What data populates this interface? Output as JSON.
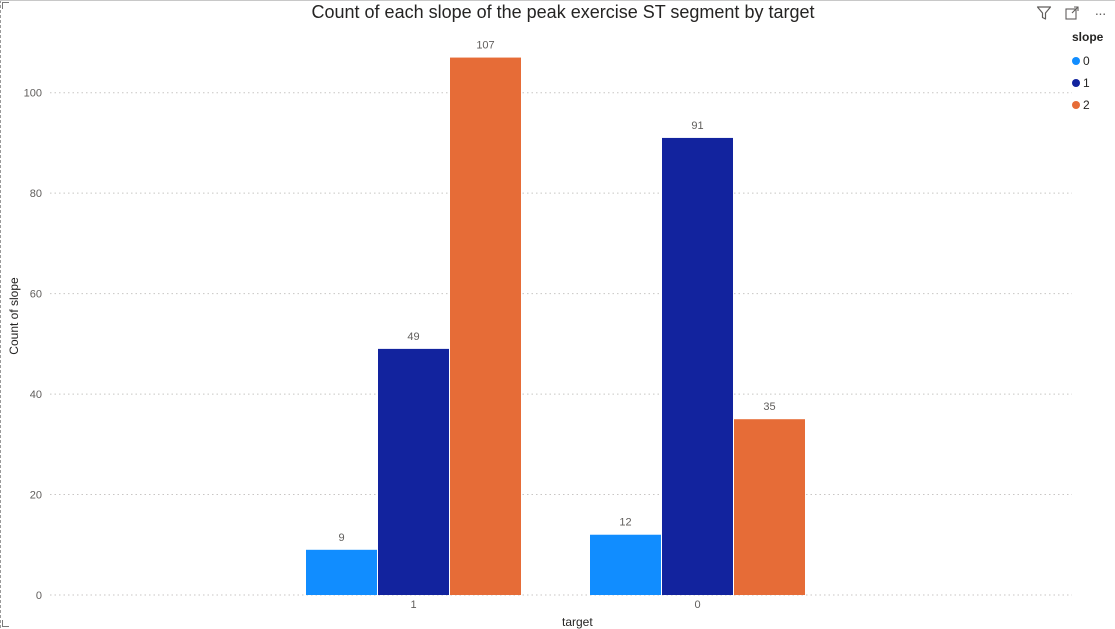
{
  "toolbar": {
    "filter_icon": "filter-icon",
    "focus_icon": "focus-mode-icon",
    "more_icon": "more-options-icon",
    "more_glyph": "···"
  },
  "legend": {
    "title": "slope",
    "items": [
      {
        "label": "0",
        "color": "#118DFF"
      },
      {
        "label": "1",
        "color": "#12239E"
      },
      {
        "label": "2",
        "color": "#E66C37"
      }
    ]
  },
  "chart_data": {
    "type": "bar",
    "title": "Count of each slope of the peak exercise ST segment by target",
    "xlabel": "target",
    "ylabel": "Count of slope",
    "categories": [
      "1",
      "0"
    ],
    "series": [
      {
        "name": "0",
        "color": "#118DFF",
        "values": [
          9,
          12
        ]
      },
      {
        "name": "1",
        "color": "#12239E",
        "values": [
          49,
          91
        ]
      },
      {
        "name": "2",
        "color": "#E66C37",
        "values": [
          107,
          35
        ]
      }
    ],
    "ylim": [
      0,
      110
    ],
    "yticks": [
      0,
      20,
      40,
      60,
      80,
      100
    ],
    "grid": true,
    "legend_position": "top-right"
  }
}
